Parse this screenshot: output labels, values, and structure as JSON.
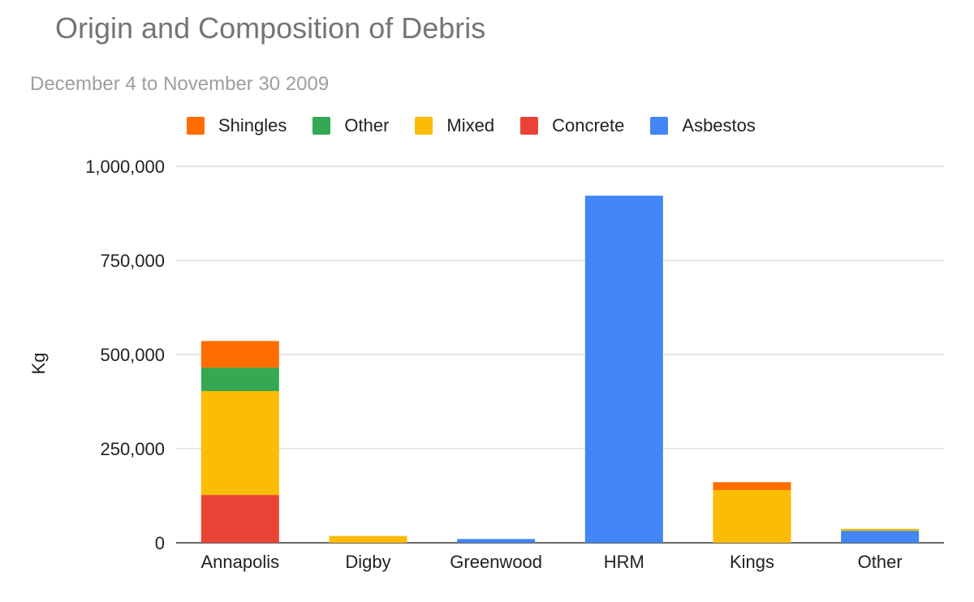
{
  "chart_data": {
    "type": "bar",
    "stacked": true,
    "title": "Origin and Composition of Debris",
    "subtitle": "December 4 to November 30 2009",
    "xlabel": "",
    "ylabel": "Kg",
    "ylim": [
      0,
      1000000
    ],
    "yticks": [
      0,
      250000,
      500000,
      750000,
      1000000
    ],
    "ytick_labels": [
      "0",
      "250,000",
      "500,000",
      "750,000",
      "1,000,000"
    ],
    "categories": [
      "Annapolis",
      "Digby",
      "Greenwood",
      "HRM",
      "Kings",
      "Other"
    ],
    "series": [
      {
        "name": "Asbestos",
        "color": "#4285f4",
        "values": [
          0,
          0,
          10000,
          922000,
          0,
          32000
        ]
      },
      {
        "name": "Concrete",
        "color": "#ea4335",
        "values": [
          127000,
          0,
          0,
          0,
          0,
          0
        ]
      },
      {
        "name": "Mixed",
        "color": "#fbbc04",
        "values": [
          276000,
          18000,
          0,
          0,
          140000,
          5000
        ]
      },
      {
        "name": "Other",
        "color": "#34a853",
        "values": [
          62000,
          0,
          0,
          0,
          0,
          0
        ]
      },
      {
        "name": "Shingles",
        "color": "#ff6d01",
        "values": [
          71000,
          0,
          0,
          0,
          21000,
          0
        ]
      }
    ],
    "legend_order": [
      "Shingles",
      "Other",
      "Mixed",
      "Concrete",
      "Asbestos"
    ],
    "legend_position": "top",
    "grid": true
  }
}
